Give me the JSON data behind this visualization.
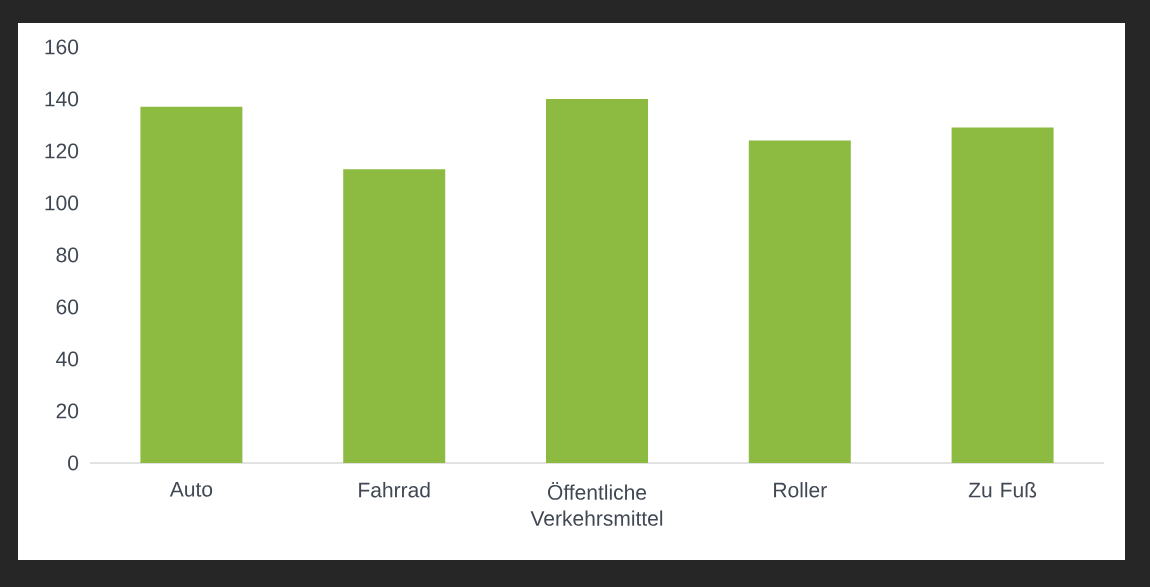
{
  "chart_data": {
    "type": "bar",
    "categories": [
      "Auto",
      "Fahrrad",
      "Öffentliche Verkehrsmittel",
      "Roller",
      "Zu Fuß"
    ],
    "values": [
      137,
      113,
      140,
      124,
      129
    ],
    "color": "#8dbb41",
    "ylim": [
      0,
      160
    ],
    "yticks": [
      0,
      20,
      40,
      60,
      80,
      100,
      120,
      140,
      160
    ]
  }
}
